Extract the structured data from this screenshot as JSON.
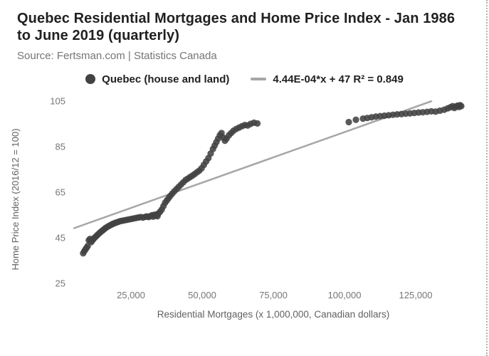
{
  "header": {
    "title": "Quebec Residential Mortgages and Home Price Index - Jan 1986 to June 2019 (quarterly)",
    "source": "Source: Fertsman.com | Statistics Canada"
  },
  "legend": {
    "series_label": "Quebec (house and land)",
    "trend_label": "4.44E-04*x + 47 R² = 0.849"
  },
  "colors": {
    "dot": "#424242",
    "trend": "#a6a6a6",
    "title": "#212121",
    "muted": "#757575"
  },
  "chart_data": {
    "type": "scatter",
    "title": "Quebec Residential Mortgages and Home Price Index - Jan 1986 to June 2019 (quarterly)",
    "xlabel": "Residential Mortgages (x 1,000,000, Canadian dollars)",
    "ylabel": "Home Price Index (2016/12 = 100)",
    "xlim": [
      4000,
      146000
    ],
    "ylim": [
      25,
      105
    ],
    "grid": false,
    "legend_position": "top",
    "x_ticks": [
      {
        "v": 25000,
        "label": "25,000"
      },
      {
        "v": 50000,
        "label": "50,000"
      },
      {
        "v": 75000,
        "label": "75,000"
      },
      {
        "v": 100000,
        "label": "100,000"
      },
      {
        "v": 125000,
        "label": "125,000"
      }
    ],
    "y_ticks": [
      {
        "v": 25,
        "label": "25"
      },
      {
        "v": 45,
        "label": "45"
      },
      {
        "v": 65,
        "label": "65"
      },
      {
        "v": 85,
        "label": "85"
      },
      {
        "v": 105,
        "label": "105"
      }
    ],
    "trend": {
      "label": "4.44E-04*x + 47 R² = 0.849",
      "slope": 0.000444,
      "intercept": 47,
      "r_squared": 0.849,
      "x_range": [
        5000,
        130500
      ]
    },
    "series": [
      {
        "name": "Quebec (house and land)",
        "points": [
          [
            8200,
            38.2
          ],
          [
            8600,
            39.1
          ],
          [
            9000,
            39.9
          ],
          [
            9400,
            40.6
          ],
          [
            9800,
            41.4
          ],
          [
            10200,
            43.9
          ],
          [
            10600,
            44.5
          ],
          [
            11000,
            43.1
          ],
          [
            11400,
            43.8
          ],
          [
            11800,
            44.4
          ],
          [
            12200,
            45.0
          ],
          [
            12700,
            45.6
          ],
          [
            13200,
            46.2
          ],
          [
            13700,
            46.8
          ],
          [
            14200,
            47.4
          ],
          [
            14700,
            47.9
          ],
          [
            15200,
            48.4
          ],
          [
            15700,
            48.9
          ],
          [
            16200,
            49.4
          ],
          [
            16800,
            49.9
          ],
          [
            17400,
            50.3
          ],
          [
            18000,
            50.7
          ],
          [
            18600,
            51.1
          ],
          [
            19200,
            51.4
          ],
          [
            19800,
            51.7
          ],
          [
            20500,
            52.0
          ],
          [
            21200,
            52.3
          ],
          [
            22000,
            52.5
          ],
          [
            22800,
            52.7
          ],
          [
            23600,
            52.9
          ],
          [
            24400,
            53.1
          ],
          [
            25200,
            53.3
          ],
          [
            26000,
            53.5
          ],
          [
            26800,
            53.7
          ],
          [
            27600,
            53.9
          ],
          [
            28400,
            54.1
          ],
          [
            29200,
            53.9
          ],
          [
            30000,
            54.2
          ],
          [
            30600,
            54.4
          ],
          [
            31200,
            54.1
          ],
          [
            31800,
            54.5
          ],
          [
            32400,
            54.9
          ],
          [
            32800,
            54.3
          ],
          [
            33200,
            55.1
          ],
          [
            33600,
            54.7
          ],
          [
            34000,
            55.3
          ],
          [
            34300,
            54.5
          ],
          [
            34600,
            55.6
          ],
          [
            35200,
            56.4
          ],
          [
            35800,
            57.4
          ],
          [
            36400,
            58.9
          ],
          [
            37000,
            60.4
          ],
          [
            37600,
            61.4
          ],
          [
            38200,
            62.4
          ],
          [
            38800,
            63.4
          ],
          [
            39500,
            64.4
          ],
          [
            40200,
            65.4
          ],
          [
            41000,
            66.4
          ],
          [
            41800,
            67.4
          ],
          [
            42600,
            68.4
          ],
          [
            43400,
            69.4
          ],
          [
            44200,
            70.4
          ],
          [
            45000,
            71.0
          ],
          [
            45800,
            71.7
          ],
          [
            46600,
            72.3
          ],
          [
            47400,
            73.0
          ],
          [
            48200,
            73.8
          ],
          [
            49000,
            74.5
          ],
          [
            49800,
            75.5
          ],
          [
            50600,
            77.0
          ],
          [
            51400,
            78.5
          ],
          [
            52200,
            80.0
          ],
          [
            53000,
            82.0
          ],
          [
            53800,
            84.0
          ],
          [
            54400,
            85.5
          ],
          [
            55000,
            87.0
          ],
          [
            55600,
            88.5
          ],
          [
            56200,
            90.0
          ],
          [
            56800,
            91.0
          ],
          [
            57400,
            89.0
          ],
          [
            58000,
            87.6
          ],
          [
            58600,
            88.6
          ],
          [
            59400,
            90.0
          ],
          [
            60200,
            91.0
          ],
          [
            61000,
            92.0
          ],
          [
            62000,
            92.8
          ],
          [
            63000,
            93.4
          ],
          [
            64000,
            94.0
          ],
          [
            65000,
            94.5
          ],
          [
            66000,
            94.3
          ],
          [
            67000,
            95.0
          ],
          [
            68200,
            95.5
          ],
          [
            69400,
            95.2
          ],
          [
            101500,
            95.8
          ],
          [
            104000,
            96.8
          ],
          [
            106500,
            97.3
          ],
          [
            108000,
            97.6
          ],
          [
            109500,
            97.9
          ],
          [
            111000,
            98.2
          ],
          [
            112500,
            98.4
          ],
          [
            114000,
            98.6
          ],
          [
            115500,
            98.8
          ],
          [
            117000,
            99.0
          ],
          [
            118500,
            99.2
          ],
          [
            120000,
            99.3
          ],
          [
            121500,
            99.5
          ],
          [
            123000,
            99.6
          ],
          [
            124500,
            99.8
          ],
          [
            126000,
            100.0
          ],
          [
            127500,
            100.1
          ],
          [
            129000,
            100.3
          ],
          [
            130500,
            100.5
          ],
          [
            132000,
            100.4
          ],
          [
            133500,
            100.8
          ],
          [
            135000,
            101.2
          ],
          [
            136200,
            101.8
          ],
          [
            137200,
            102.3
          ],
          [
            138000,
            102.8
          ],
          [
            138600,
            102.0
          ],
          [
            139200,
            102.6
          ],
          [
            139700,
            103.0
          ],
          [
            140200,
            102.4
          ],
          [
            140600,
            103.2
          ],
          [
            141000,
            102.8
          ]
        ]
      }
    ]
  }
}
